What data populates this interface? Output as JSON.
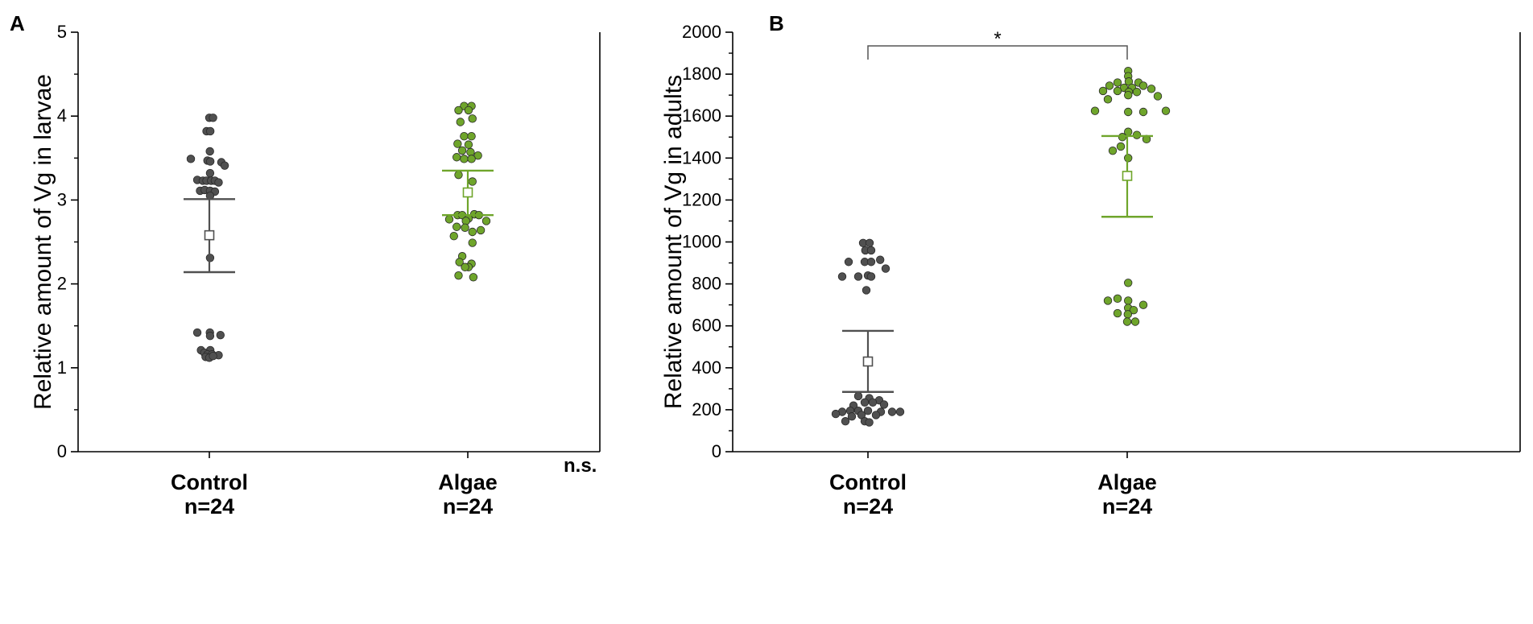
{
  "colors": {
    "control": "#505050",
    "algae": "#6fa52b",
    "axis": "#000000",
    "bracket": "#555555"
  },
  "chart_data": [
    {
      "panel": "A",
      "type": "scatter",
      "ylabel": "Relative amount of Vg in larvae",
      "ylim": [
        0,
        5
      ],
      "yticks": [
        "0",
        "1",
        "2",
        "3",
        "4",
        "5"
      ],
      "ytick_values": [
        0,
        1,
        2,
        3,
        4,
        5
      ],
      "minor_step": 0.5,
      "grid": false,
      "categories": [
        {
          "label": "Control",
          "n_label": "n=24",
          "color_key": "control"
        },
        {
          "label": "Algae",
          "n_label": "n=24",
          "color_key": "algae"
        }
      ],
      "series": [
        {
          "name": "Control",
          "mean": 2.58,
          "err_low": 2.14,
          "err_high": 3.01,
          "points": [
            [
              0,
              3.98
            ],
            [
              0.2,
              3.98
            ],
            [
              -0.15,
              3.82
            ],
            [
              0.05,
              3.82
            ],
            [
              0.03,
              3.58
            ],
            [
              -1,
              3.49
            ],
            [
              -0.1,
              3.47
            ],
            [
              0.05,
              3.46
            ],
            [
              0.65,
              3.45
            ],
            [
              0.83,
              3.41
            ],
            [
              0.04,
              3.32
            ],
            [
              -0.65,
              3.24
            ],
            [
              -0.35,
              3.23
            ],
            [
              -0.15,
              3.23
            ],
            [
              0.1,
              3.23
            ],
            [
              0.3,
              3.23
            ],
            [
              0.5,
              3.21
            ],
            [
              -0.5,
              3.11
            ],
            [
              -0.25,
              3.12
            ],
            [
              0.04,
              3.11
            ],
            [
              0.3,
              3.1
            ],
            [
              0.04,
              3.05
            ],
            [
              0.04,
              2.31
            ],
            [
              -0.65,
              1.42
            ],
            [
              0.03,
              1.42
            ],
            [
              0.04,
              1.38
            ],
            [
              0.6,
              1.39
            ],
            [
              -0.45,
              1.21
            ],
            [
              0.05,
              1.21
            ],
            [
              -0.27,
              1.18
            ],
            [
              -0.1,
              1.16
            ],
            [
              0.15,
              1.16
            ],
            [
              0.5,
              1.15
            ],
            [
              -0.2,
              1.13
            ],
            [
              0,
              1.12
            ],
            [
              0.2,
              1.14
            ]
          ]
        },
        {
          "name": "Algae",
          "mean": 3.09,
          "err_low": 2.82,
          "err_high": 3.35,
          "points": [
            [
              -0.2,
              4.12
            ],
            [
              0.2,
              4.12
            ],
            [
              -0.5,
              4.07
            ],
            [
              0.04,
              4.07
            ],
            [
              0.25,
              3.97
            ],
            [
              -0.4,
              3.93
            ],
            [
              -0.2,
              3.76
            ],
            [
              0.2,
              3.76
            ],
            [
              -0.55,
              3.67
            ],
            [
              0.04,
              3.66
            ],
            [
              -0.3,
              3.59
            ],
            [
              0.15,
              3.57
            ],
            [
              0.55,
              3.53
            ],
            [
              -0.6,
              3.51
            ],
            [
              -0.2,
              3.49
            ],
            [
              0.2,
              3.49
            ],
            [
              -0.5,
              3.3
            ],
            [
              0.25,
              3.22
            ],
            [
              -1,
              2.77
            ],
            [
              -0.55,
              2.82
            ],
            [
              -0.3,
              2.82
            ],
            [
              0.35,
              2.83
            ],
            [
              0.6,
              2.82
            ],
            [
              0.04,
              2.78
            ],
            [
              -0.1,
              2.75
            ],
            [
              1,
              2.75
            ],
            [
              -0.15,
              2.67
            ],
            [
              -0.6,
              2.68
            ],
            [
              0.7,
              2.64
            ],
            [
              0.25,
              2.62
            ],
            [
              -0.75,
              2.57
            ],
            [
              0.25,
              2.49
            ],
            [
              -0.3,
              2.33
            ],
            [
              -0.45,
              2.26
            ],
            [
              0.2,
              2.24
            ],
            [
              0.04,
              2.2
            ],
            [
              -0.15,
              2.2
            ],
            [
              -0.5,
              2.1
            ],
            [
              0.3,
              2.08
            ]
          ]
        }
      ],
      "annotations": [
        {
          "text": "n.s."
        }
      ]
    },
    {
      "panel": "B",
      "type": "scatter",
      "ylabel": "Relative amount of Vg in adults",
      "ylim": [
        0,
        2000
      ],
      "yticks": [
        "0",
        "200",
        "400",
        "600",
        "800",
        "1000",
        "1200",
        "1400",
        "1600",
        "1800",
        "2000"
      ],
      "ytick_values": [
        0,
        200,
        400,
        600,
        800,
        1000,
        1200,
        1400,
        1600,
        1800,
        2000
      ],
      "minor_step": 100,
      "grid": false,
      "categories": [
        {
          "label": "Control",
          "n_label": "n=24",
          "color_key": "control"
        },
        {
          "label": "Algae",
          "n_label": "n=24",
          "color_key": "algae"
        }
      ],
      "series": [
        {
          "name": "Control",
          "mean": 430,
          "err_low": 285,
          "err_high": 576,
          "points": [
            [
              -0.15,
              995
            ],
            [
              0.05,
              995
            ],
            [
              -0.08,
              960
            ],
            [
              0.1,
              960
            ],
            [
              -0.6,
              905
            ],
            [
              -0.1,
              905
            ],
            [
              0.1,
              905
            ],
            [
              0.38,
              915
            ],
            [
              0.55,
              873
            ],
            [
              -0.8,
              835
            ],
            [
              -0.3,
              835
            ],
            [
              0,
              840
            ],
            [
              0.1,
              835
            ],
            [
              -0.05,
              770
            ],
            [
              -0.3,
              265
            ],
            [
              0.04,
              255
            ],
            [
              0.35,
              245
            ],
            [
              -0.1,
              235
            ],
            [
              0.15,
              235
            ],
            [
              0.5,
              225
            ],
            [
              -0.45,
              220
            ],
            [
              -0.8,
              190
            ],
            [
              -0.55,
              195
            ],
            [
              -0.3,
              195
            ],
            [
              0,
              195
            ],
            [
              0.4,
              190
            ],
            [
              0.75,
              190
            ],
            [
              1,
              190
            ],
            [
              -1,
              180
            ],
            [
              -0.5,
              168
            ],
            [
              -0.2,
              175
            ],
            [
              0.25,
              175
            ],
            [
              -0.7,
              145
            ],
            [
              -0.1,
              145
            ],
            [
              0.04,
              140
            ]
          ]
        },
        {
          "name": "Algae",
          "mean": 1315,
          "err_low": 1120,
          "err_high": 1505,
          "points": [
            [
              0.03,
              1815
            ],
            [
              0.03,
              1790
            ],
            [
              -0.3,
              1760
            ],
            [
              0.05,
              1765
            ],
            [
              0.35,
              1760
            ],
            [
              0.5,
              1745
            ],
            [
              -0.1,
              1735
            ],
            [
              0.15,
              1735
            ],
            [
              -0.55,
              1745
            ],
            [
              -0.75,
              1720
            ],
            [
              0.75,
              1730
            ],
            [
              -0.3,
              1720
            ],
            [
              0.05,
              1715
            ],
            [
              0.3,
              1715
            ],
            [
              0.95,
              1695
            ],
            [
              0.03,
              1700
            ],
            [
              -0.6,
              1680
            ],
            [
              -1,
              1625
            ],
            [
              0.03,
              1620
            ],
            [
              0.5,
              1620
            ],
            [
              1.2,
              1625
            ],
            [
              0.03,
              1525
            ],
            [
              -0.15,
              1500
            ],
            [
              0.3,
              1510
            ],
            [
              0.6,
              1490
            ],
            [
              -0.2,
              1455
            ],
            [
              -0.45,
              1435
            ],
            [
              0.03,
              1400
            ],
            [
              0.03,
              805
            ],
            [
              -0.3,
              730
            ],
            [
              -0.6,
              720
            ],
            [
              0.03,
              720
            ],
            [
              0.5,
              700
            ],
            [
              0.03,
              685
            ],
            [
              0.2,
              675
            ],
            [
              -0.3,
              660
            ],
            [
              0.02,
              655
            ],
            [
              0,
              620
            ],
            [
              0.25,
              620
            ]
          ]
        }
      ],
      "annotations": [
        {
          "text": "*",
          "type": "significance_bracket"
        }
      ]
    }
  ]
}
